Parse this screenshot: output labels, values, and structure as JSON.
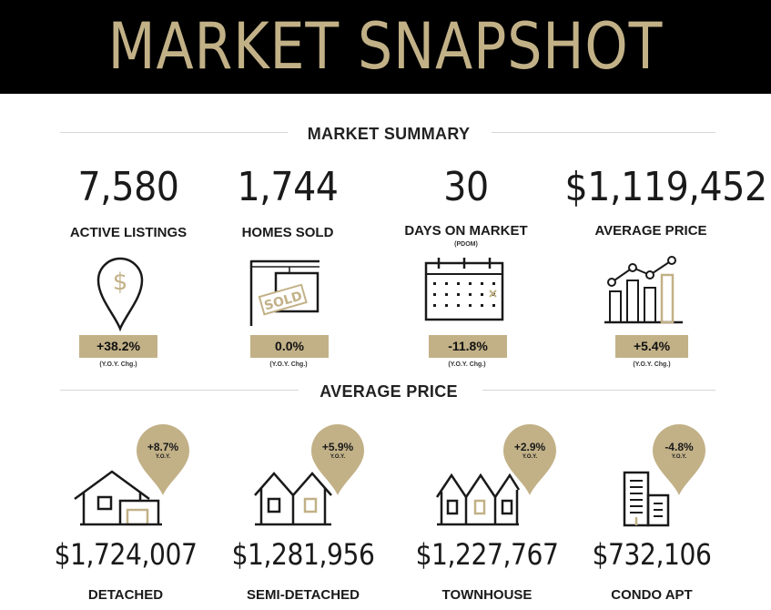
{
  "header": {
    "title": "MARKET SNAPSHOT"
  },
  "colors": {
    "accent": "#c2b187",
    "header_bg": "#000000",
    "text": "#1a1a1a"
  },
  "summary": {
    "title": "MARKET SUMMARY",
    "stats": [
      {
        "value": "7,580",
        "label": "ACTIVE LISTINGS",
        "sublabel": "",
        "change": "+38.2%",
        "change_note": "(Y.O.Y. Chg.)",
        "icon": "location-pin-dollar-icon"
      },
      {
        "value": "1,744",
        "label": "HOMES SOLD",
        "sublabel": "",
        "change": "0.0%",
        "change_note": "(Y.O.Y. Chg.)",
        "icon": "sold-sign-icon",
        "icon_text": "SOLD"
      },
      {
        "value": "30",
        "label": "DAYS ON MARKET",
        "sublabel": "(PDOM)",
        "change": "-11.8%",
        "change_note": "(Y.O.Y. Chg.)",
        "icon": "calendar-icon"
      },
      {
        "value": "$1,119,452",
        "label": "AVERAGE PRICE",
        "sublabel": "",
        "change": "+5.4%",
        "change_note": "(Y.O.Y. Chg.)",
        "icon": "bar-line-chart-icon"
      }
    ]
  },
  "average_price": {
    "title": "AVERAGE PRICE",
    "types": [
      {
        "change": "+8.7%",
        "yoy": "Y.O.Y.",
        "price": "$1,724,007",
        "label": "DETACHED",
        "icon": "detached-house-icon"
      },
      {
        "change": "+5.9%",
        "yoy": "Y.O.Y.",
        "price": "$1,281,956",
        "label": "SEMI-DETACHED",
        "icon": "semi-detached-house-icon"
      },
      {
        "change": "+2.9%",
        "yoy": "Y.O.Y.",
        "price": "$1,227,767",
        "label": "TOWNHOUSE",
        "icon": "townhouse-icon"
      },
      {
        "change": "-4.8%",
        "yoy": "Y.O.Y.",
        "price": "$732,106",
        "label": "CONDO APT",
        "icon": "condo-building-icon"
      }
    ]
  }
}
